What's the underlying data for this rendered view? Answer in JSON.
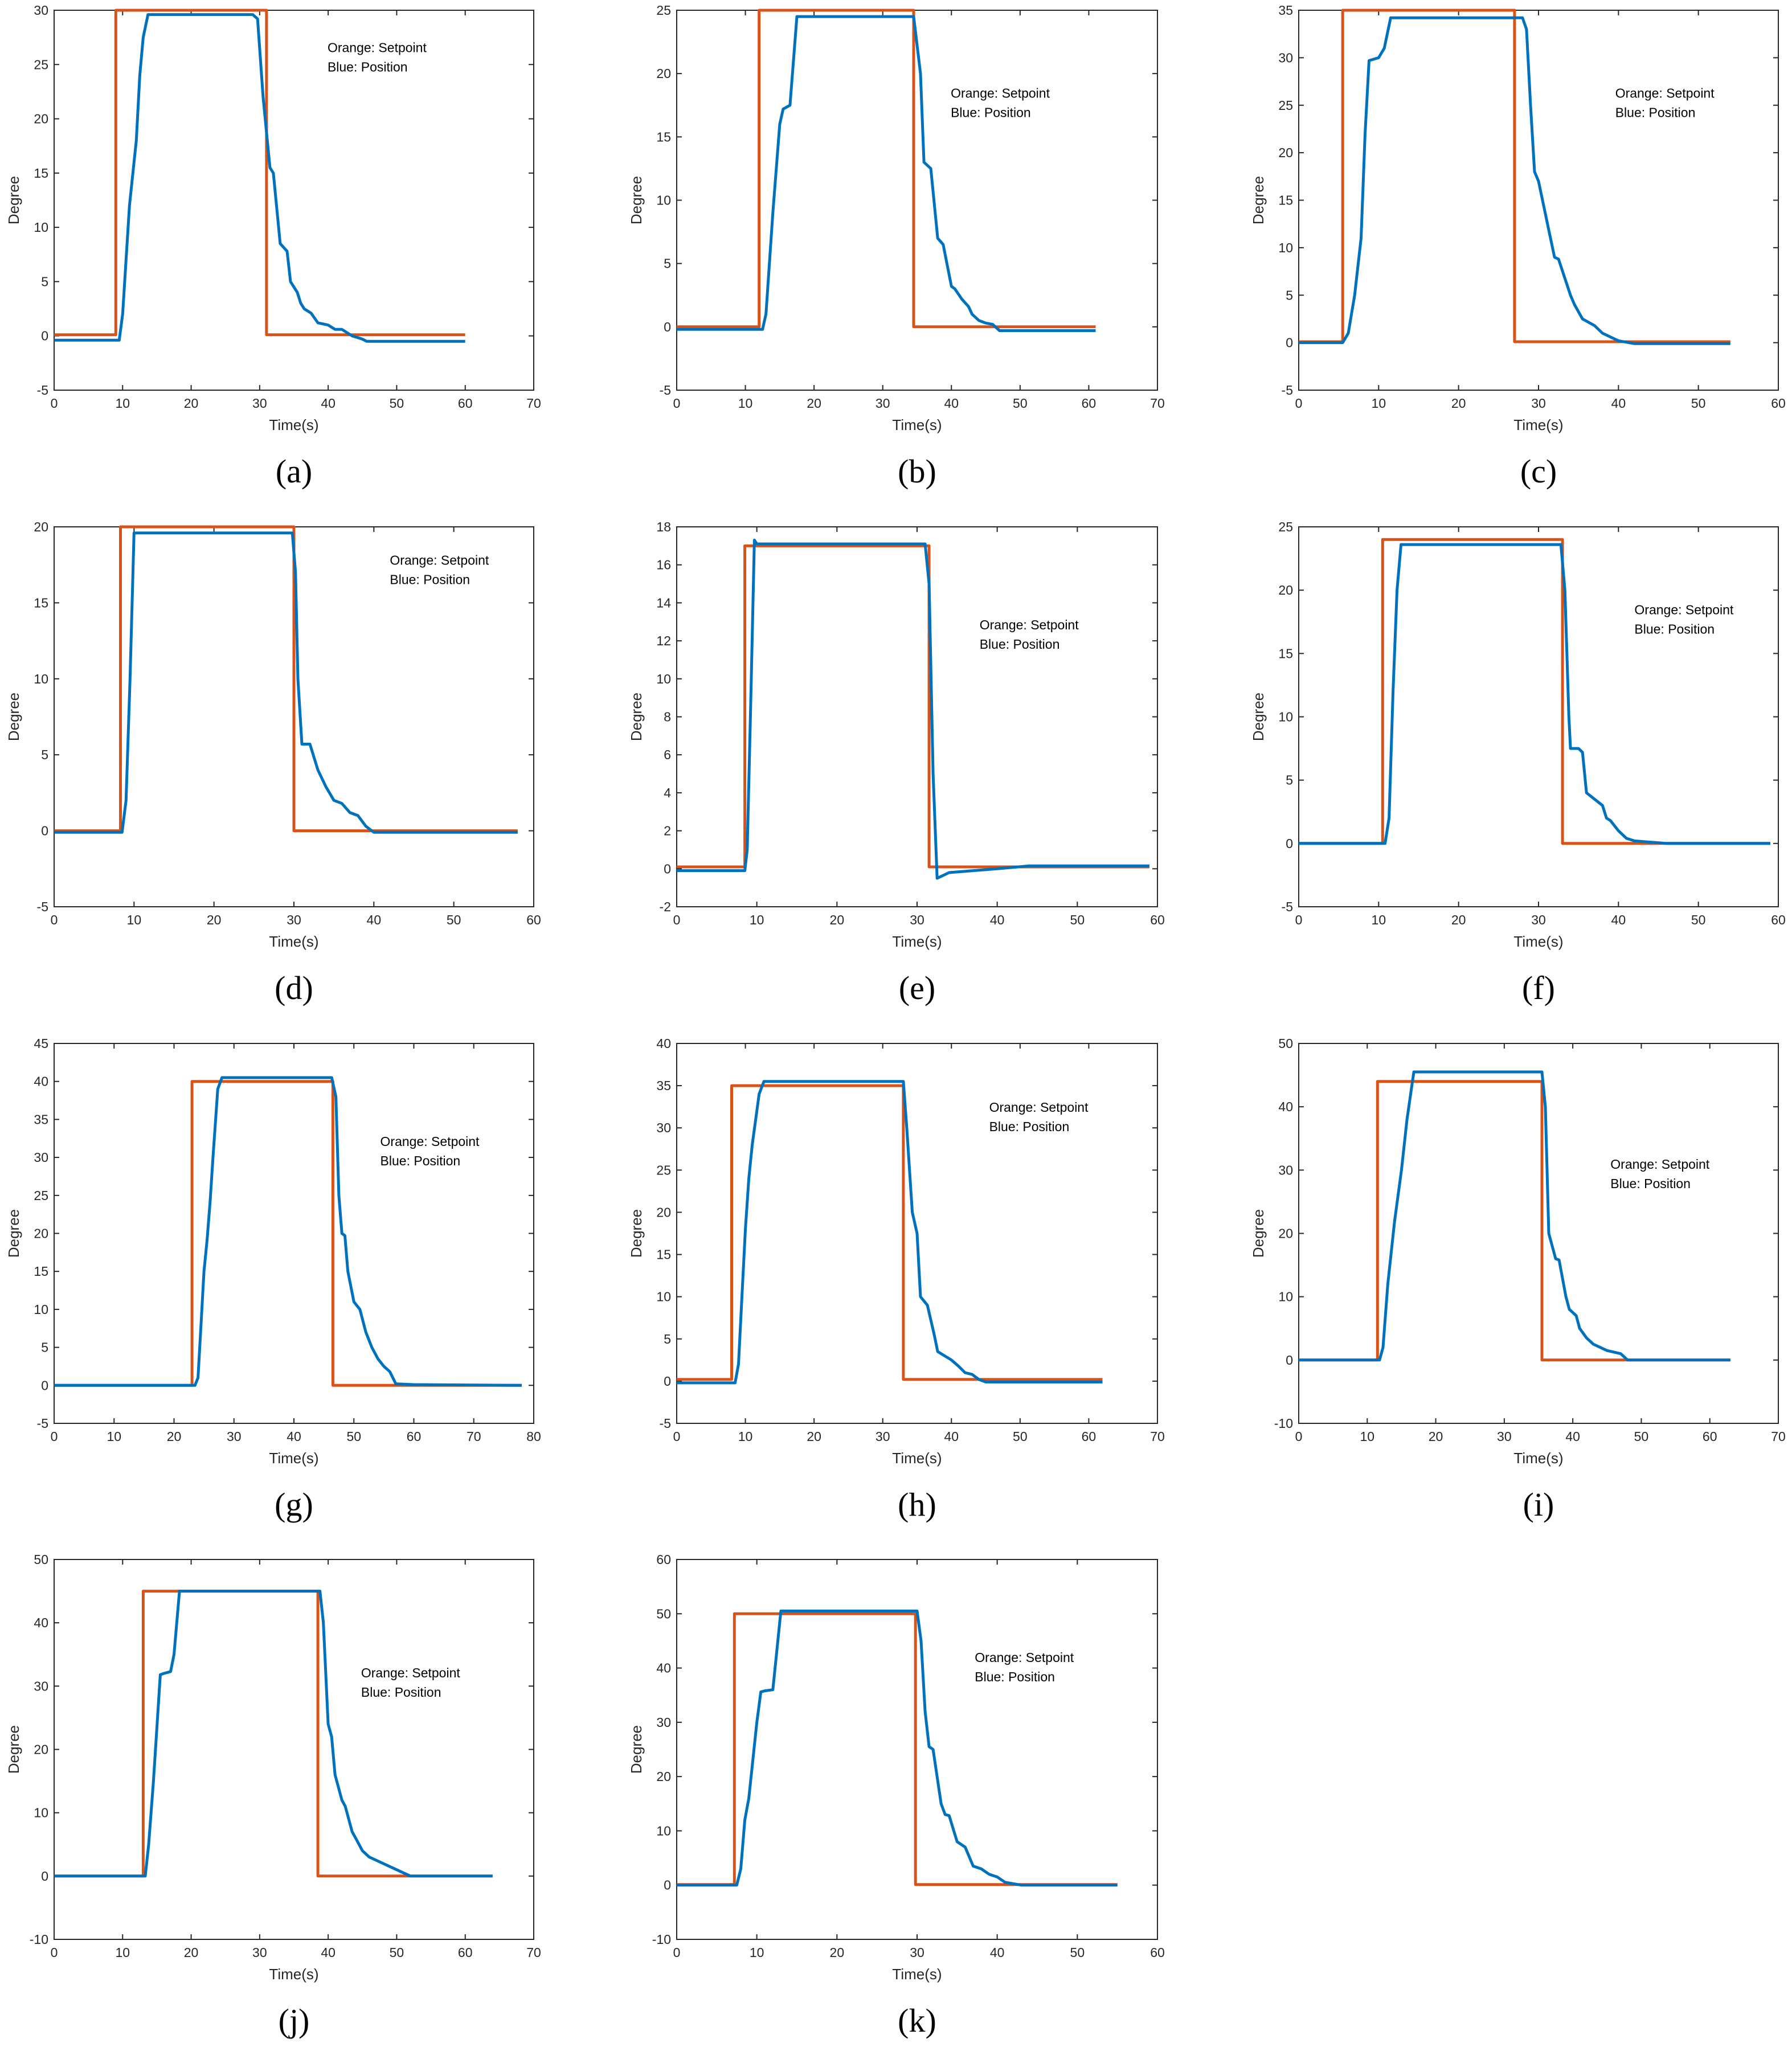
{
  "colors": {
    "setpoint": "#d95319",
    "position": "#0072bd",
    "axis": "#262626"
  },
  "legend": {
    "line1": "Orange: Setpoint",
    "line2": "Blue: Position"
  },
  "chart_data": [
    {
      "panel": "(a)",
      "type": "line",
      "xlabel": "Time(s)",
      "ylabel": "Degree",
      "xlim": [
        0,
        70
      ],
      "ylim": [
        -5,
        30
      ],
      "xticks": [
        0,
        10,
        20,
        30,
        40,
        50,
        60,
        70
      ],
      "yticks": [
        -5,
        0,
        5,
        10,
        15,
        20,
        25,
        30
      ],
      "series": [
        {
          "name": "Setpoint",
          "x": [
            0,
            9,
            9,
            31,
            31,
            60
          ],
          "y": [
            0.1,
            0.1,
            30,
            30,
            0.1,
            0.1
          ]
        },
        {
          "name": "Position",
          "x": [
            0,
            9.5,
            10,
            11,
            12,
            12.5,
            13,
            13.7,
            29,
            29.7,
            30.5,
            31.5,
            32,
            33,
            34,
            34.5,
            35.5,
            36,
            36.5,
            37.5,
            38.5,
            40,
            41,
            42,
            43.5,
            45,
            45.6,
            50,
            60
          ],
          "y": [
            -0.4,
            -0.4,
            2,
            12,
            18,
            24,
            27.5,
            29.6,
            29.6,
            29.2,
            22,
            15.5,
            15,
            8.5,
            7.8,
            5,
            4,
            3,
            2.5,
            2.1,
            1.2,
            1,
            0.6,
            0.6,
            0,
            -0.3,
            -0.5,
            -0.5,
            -0.5
          ]
        }
      ]
    },
    {
      "panel": "(b)",
      "type": "line",
      "xlabel": "Time(s)",
      "ylabel": "Degree",
      "xlim": [
        0,
        70
      ],
      "ylim": [
        -5,
        25
      ],
      "xticks": [
        0,
        10,
        20,
        30,
        40,
        50,
        60,
        70
      ],
      "yticks": [
        -5,
        0,
        5,
        10,
        15,
        20,
        25
      ],
      "series": [
        {
          "name": "Setpoint",
          "x": [
            0,
            12,
            12,
            34.5,
            34.5,
            61
          ],
          "y": [
            0,
            0,
            25,
            25,
            0,
            0
          ]
        },
        {
          "name": "Position",
          "x": [
            0,
            12.5,
            13,
            14,
            15,
            15.5,
            16.5,
            17.5,
            34.5,
            35.5,
            36,
            37,
            38,
            38.8,
            40,
            40.5,
            41.5,
            42.5,
            43,
            44,
            45,
            46,
            47,
            48,
            61
          ],
          "y": [
            -0.2,
            -0.2,
            1,
            9,
            16,
            17.2,
            17.5,
            24.5,
            24.5,
            20,
            13,
            12.5,
            7,
            6.5,
            3.2,
            3,
            2.2,
            1.6,
            1,
            0.5,
            0.3,
            0.2,
            -0.3,
            -0.3,
            -0.3
          ]
        }
      ]
    },
    {
      "panel": "(c)",
      "type": "line",
      "xlabel": "Time(s)",
      "ylabel": "Degree",
      "xlim": [
        0,
        60
      ],
      "ylim": [
        -5,
        35
      ],
      "xticks": [
        0,
        10,
        20,
        30,
        40,
        50,
        60
      ],
      "yticks": [
        -5,
        0,
        5,
        10,
        15,
        20,
        25,
        30,
        35
      ],
      "series": [
        {
          "name": "Setpoint",
          "x": [
            0,
            5.5,
            5.5,
            27,
            27,
            54
          ],
          "y": [
            0.1,
            0.1,
            35,
            35,
            0.1,
            0.1
          ]
        },
        {
          "name": "Position",
          "x": [
            0,
            5.5,
            6.2,
            7,
            7.8,
            8.3,
            8.8,
            10,
            10.7,
            11.5,
            28,
            28.5,
            29,
            29.5,
            30,
            31,
            32,
            32.5,
            34,
            34.5,
            35.5,
            37,
            38,
            39.5,
            40,
            42,
            54
          ],
          "y": [
            0,
            0,
            1,
            5,
            11,
            22,
            29.7,
            30,
            31,
            34.2,
            34.2,
            33,
            25,
            18,
            17,
            13,
            9,
            8.8,
            5,
            4,
            2.5,
            1.8,
            1,
            0.4,
            0.2,
            -0.1,
            -0.1
          ]
        }
      ]
    },
    {
      "panel": "(d)",
      "type": "line",
      "xlabel": "Time(s)",
      "ylabel": "Degree",
      "xlim": [
        0,
        60
      ],
      "ylim": [
        -5,
        20
      ],
      "xticks": [
        0,
        10,
        20,
        30,
        40,
        50,
        60
      ],
      "yticks": [
        -5,
        0,
        5,
        10,
        15,
        20
      ],
      "series": [
        {
          "name": "Setpoint",
          "x": [
            0,
            8.3,
            8.3,
            30,
            30,
            58
          ],
          "y": [
            0,
            0,
            20,
            20,
            0,
            0
          ]
        },
        {
          "name": "Position",
          "x": [
            0,
            8.5,
            9,
            9.5,
            10,
            29.8,
            30.2,
            30.5,
            31,
            32,
            33,
            34,
            35,
            36,
            37,
            38,
            39,
            40,
            58
          ],
          "y": [
            -0.1,
            -0.1,
            2,
            10,
            19.6,
            19.6,
            17,
            10,
            5.7,
            5.7,
            4,
            2.9,
            2,
            1.8,
            1.2,
            1,
            0.3,
            -0.1,
            -0.1
          ]
        }
      ]
    },
    {
      "panel": "(e)",
      "type": "line",
      "xlabel": "Time(s)",
      "ylabel": "Degree",
      "xlim": [
        0,
        60
      ],
      "ylim": [
        -2,
        18
      ],
      "xticks": [
        0,
        10,
        20,
        30,
        40,
        50,
        60
      ],
      "yticks": [
        -2,
        0,
        2,
        4,
        6,
        8,
        10,
        12,
        14,
        16,
        18
      ],
      "series": [
        {
          "name": "Setpoint",
          "x": [
            0,
            8.5,
            8.5,
            31.5,
            31.5,
            59
          ],
          "y": [
            0.1,
            0.1,
            17,
            17,
            0.1,
            0.1
          ]
        },
        {
          "name": "Position",
          "x": [
            0,
            8.5,
            8.8,
            9.2,
            9.7,
            10,
            31,
            31.5,
            32,
            32.5,
            34,
            40,
            44,
            59
          ],
          "y": [
            -0.1,
            -0.1,
            1,
            8,
            17.3,
            17.1,
            17.1,
            15,
            5,
            -0.5,
            -0.2,
            0,
            0.15,
            0.15
          ]
        }
      ]
    },
    {
      "panel": "(f)",
      "type": "line",
      "xlabel": "Time(s)",
      "ylabel": "Degree",
      "xlim": [
        0,
        60
      ],
      "ylim": [
        -5,
        25
      ],
      "xticks": [
        0,
        10,
        20,
        30,
        40,
        50,
        60
      ],
      "yticks": [
        -5,
        0,
        5,
        10,
        15,
        20,
        25
      ],
      "series": [
        {
          "name": "Setpoint",
          "x": [
            0,
            10.5,
            10.5,
            33,
            33,
            59
          ],
          "y": [
            0,
            0,
            24,
            24,
            0,
            0
          ]
        },
        {
          "name": "Position",
          "x": [
            0,
            10.8,
            11.3,
            11.8,
            12.3,
            12.8,
            32.8,
            33.3,
            33.8,
            34,
            35,
            35.5,
            36,
            37,
            38,
            38.5,
            39,
            40,
            41,
            42,
            44,
            46,
            59
          ],
          "y": [
            0,
            0,
            2,
            12,
            20,
            23.6,
            23.6,
            20,
            10,
            7.5,
            7.5,
            7.2,
            4,
            3.5,
            3,
            2,
            1.8,
            1,
            0.4,
            0.2,
            0.1,
            0,
            0
          ]
        }
      ]
    },
    {
      "panel": "(g)",
      "type": "line",
      "xlabel": "Time(s)",
      "ylabel": "Degree",
      "xlim": [
        0,
        80
      ],
      "ylim": [
        -5,
        45
      ],
      "xticks": [
        0,
        10,
        20,
        30,
        40,
        50,
        60,
        70,
        80
      ],
      "yticks": [
        -5,
        0,
        5,
        10,
        15,
        20,
        25,
        30,
        35,
        40,
        45
      ],
      "series": [
        {
          "name": "Setpoint",
          "x": [
            0,
            23,
            23,
            46.5,
            46.5,
            78
          ],
          "y": [
            0,
            0,
            40,
            40,
            0,
            0
          ]
        },
        {
          "name": "Position",
          "x": [
            0,
            23.5,
            24,
            24.5,
            25,
            25.5,
            26,
            26.5,
            27.3,
            28,
            46.3,
            47,
            47.5,
            48,
            48.5,
            49,
            50,
            51,
            52,
            53,
            54,
            55,
            56,
            57,
            60,
            78
          ],
          "y": [
            0,
            0,
            1,
            8,
            15,
            19,
            24,
            30,
            39,
            40.5,
            40.5,
            38,
            25,
            20,
            19.7,
            15,
            11,
            10,
            7,
            5,
            3.5,
            2.5,
            1.8,
            0.2,
            0.1,
            0
          ]
        }
      ]
    },
    {
      "panel": "(h)",
      "type": "line",
      "xlabel": "Time(s)",
      "ylabel": "Degree",
      "xlim": [
        0,
        70
      ],
      "ylim": [
        -5,
        40
      ],
      "xticks": [
        0,
        10,
        20,
        30,
        40,
        50,
        60,
        70
      ],
      "yticks": [
        -5,
        0,
        5,
        10,
        15,
        20,
        25,
        30,
        35,
        40
      ],
      "series": [
        {
          "name": "Setpoint",
          "x": [
            0,
            8,
            8,
            33,
            33,
            62
          ],
          "y": [
            0.2,
            0.2,
            35,
            35,
            0.2,
            0.2
          ]
        },
        {
          "name": "Position",
          "x": [
            0,
            8.5,
            9,
            9.5,
            10,
            10.5,
            11,
            11.5,
            12,
            12.7,
            33,
            33.5,
            34.3,
            35,
            35.5,
            36.5,
            37.5,
            38,
            39,
            40,
            41,
            42,
            43,
            44,
            45,
            62
          ],
          "y": [
            -0.2,
            -0.2,
            2,
            10,
            18,
            24,
            28,
            31,
            34,
            35.5,
            35.5,
            30,
            20,
            17.5,
            10,
            9,
            5.5,
            3.5,
            3,
            2.5,
            1.8,
            1,
            0.8,
            0.2,
            -0.1,
            -0.1
          ]
        }
      ]
    },
    {
      "panel": "(i)",
      "type": "line",
      "xlabel": "Time(s)",
      "ylabel": "Degree",
      "xlim": [
        0,
        70
      ],
      "ylim": [
        -10,
        50
      ],
      "xticks": [
        0,
        10,
        20,
        30,
        40,
        50,
        60,
        70
      ],
      "yticks": [
        -10,
        0,
        10,
        20,
        30,
        40,
        50
      ],
      "series": [
        {
          "name": "Setpoint",
          "x": [
            0,
            11.5,
            11.5,
            35.5,
            35.5,
            63
          ],
          "y": [
            0,
            0,
            44,
            44,
            0,
            0
          ]
        },
        {
          "name": "Position",
          "x": [
            0,
            11.8,
            12.3,
            13,
            14,
            15,
            15.8,
            16.8,
            35.5,
            36,
            36.5,
            37.5,
            38,
            39,
            39.5,
            40.5,
            41,
            42,
            43,
            45,
            47,
            48,
            63
          ],
          "y": [
            0,
            0,
            2,
            12,
            22,
            30,
            38,
            45.5,
            45.5,
            40,
            20,
            16,
            15.8,
            10,
            8,
            7,
            5,
            3.5,
            2.5,
            1.5,
            1,
            0,
            0
          ]
        }
      ]
    },
    {
      "panel": "(j)",
      "type": "line",
      "xlabel": "Time(s)",
      "ylabel": "Degree",
      "xlim": [
        0,
        70
      ],
      "ylim": [
        -10,
        50
      ],
      "xticks": [
        0,
        10,
        20,
        30,
        40,
        50,
        60,
        70
      ],
      "yticks": [
        -10,
        0,
        10,
        20,
        30,
        40,
        50
      ],
      "series": [
        {
          "name": "Setpoint",
          "x": [
            0,
            13,
            13,
            38.5,
            38.5,
            64
          ],
          "y": [
            0,
            0,
            45,
            45,
            0,
            0
          ]
        },
        {
          "name": "Position",
          "x": [
            0,
            13.3,
            13.8,
            14.5,
            15.5,
            16,
            17,
            17.5,
            18.3,
            38.8,
            39.3,
            40,
            40.5,
            41,
            42,
            42.5,
            43.5,
            44,
            45,
            46,
            47,
            49,
            51,
            52,
            64
          ],
          "y": [
            0,
            0,
            5,
            15,
            31.8,
            32,
            32.3,
            35,
            45,
            45,
            40,
            24,
            22,
            16,
            12,
            11,
            7,
            6,
            4,
            3,
            2.5,
            1.5,
            0.5,
            0,
            0
          ]
        }
      ]
    },
    {
      "panel": "(k)",
      "type": "line",
      "xlabel": "Time(s)",
      "ylabel": "Degree",
      "xlim": [
        0,
        60
      ],
      "ylim": [
        -10,
        60
      ],
      "xticks": [
        0,
        10,
        20,
        30,
        40,
        50,
        60
      ],
      "yticks": [
        -10,
        0,
        10,
        20,
        30,
        40,
        50,
        60
      ],
      "series": [
        {
          "name": "Setpoint",
          "x": [
            0,
            7.2,
            7.2,
            29.8,
            29.8,
            55
          ],
          "y": [
            0.1,
            0.1,
            50,
            50,
            0.1,
            0.1
          ]
        },
        {
          "name": "Position",
          "x": [
            0,
            7.5,
            8,
            8.5,
            9,
            10,
            10.5,
            11,
            12,
            13,
            30,
            30.5,
            31,
            31.5,
            32,
            33,
            33.5,
            34,
            35,
            36,
            37,
            38,
            39,
            40,
            41,
            43,
            55
          ],
          "y": [
            0,
            0,
            3,
            12,
            16,
            30,
            35.6,
            35.8,
            36,
            50.5,
            50.5,
            45,
            32,
            25.5,
            25,
            15,
            13,
            12.8,
            8,
            7,
            3.5,
            3,
            2,
            1.5,
            0.5,
            0,
            0
          ]
        }
      ]
    }
  ]
}
